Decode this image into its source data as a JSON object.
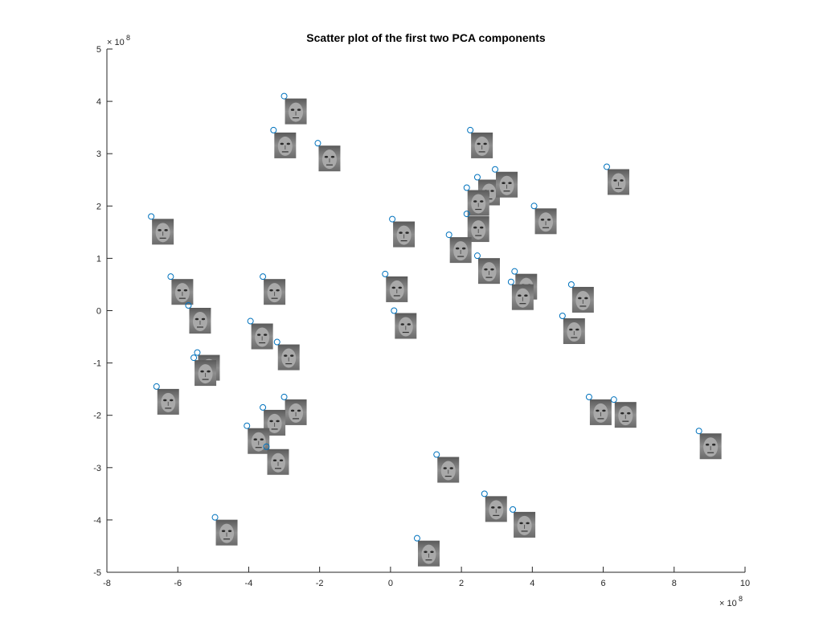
{
  "chart_data": {
    "type": "scatter",
    "title": "Scatter plot of the first two PCA components",
    "xlabel": "",
    "ylabel": "",
    "xlim": [
      -8,
      10
    ],
    "ylim": [
      -5,
      5
    ],
    "x_ticks": [
      -8,
      -6,
      -4,
      -2,
      0,
      2,
      4,
      6,
      8,
      10
    ],
    "y_ticks": [
      -5,
      -4,
      -3,
      -2,
      -1,
      0,
      1,
      2,
      3,
      4,
      5
    ],
    "x_tick_labels": [
      "-8",
      "-6",
      "-4",
      "-2",
      "0",
      "2",
      "4",
      "6",
      "8",
      "10"
    ],
    "y_tick_labels": [
      "-5",
      "-4",
      "-3",
      "-2",
      "-1",
      "0",
      "1",
      "2",
      "3",
      "4",
      "5"
    ],
    "x_exponent": {
      "base": "× 10",
      "power": "8"
    },
    "y_exponent": {
      "base": "× 10",
      "power": "8"
    },
    "marker": "circle-with-face-thumbnail",
    "marker_color": "#0072BD",
    "grid": false,
    "points": [
      {
        "x": -3.0,
        "y": 4.1
      },
      {
        "x": -3.3,
        "y": 3.45
      },
      {
        "x": -2.05,
        "y": 3.2
      },
      {
        "x": -6.75,
        "y": 1.8
      },
      {
        "x": -6.2,
        "y": 0.65
      },
      {
        "x": -3.6,
        "y": 0.65
      },
      {
        "x": -5.7,
        "y": 0.1
      },
      {
        "x": -3.95,
        "y": -0.2
      },
      {
        "x": -3.2,
        "y": -0.6
      },
      {
        "x": -5.45,
        "y": -0.8
      },
      {
        "x": -5.55,
        "y": -0.9
      },
      {
        "x": -6.6,
        "y": -1.45
      },
      {
        "x": -3.0,
        "y": -1.65
      },
      {
        "x": -3.6,
        "y": -1.85
      },
      {
        "x": -4.05,
        "y": -2.2
      },
      {
        "x": -3.5,
        "y": -2.6
      },
      {
        "x": -4.95,
        "y": -3.95
      },
      {
        "x": -0.15,
        "y": 0.7
      },
      {
        "x": 0.05,
        "y": 1.75
      },
      {
        "x": 0.1,
        "y": 0.0
      },
      {
        "x": 2.25,
        "y": 3.45
      },
      {
        "x": 2.45,
        "y": 2.55
      },
      {
        "x": 2.95,
        "y": 2.7
      },
      {
        "x": 2.15,
        "y": 2.35
      },
      {
        "x": 2.15,
        "y": 1.85
      },
      {
        "x": 1.65,
        "y": 1.45
      },
      {
        "x": 2.45,
        "y": 1.05
      },
      {
        "x": 4.05,
        "y": 2.0
      },
      {
        "x": 6.1,
        "y": 2.75
      },
      {
        "x": 3.5,
        "y": 0.75
      },
      {
        "x": 3.4,
        "y": 0.55
      },
      {
        "x": 5.1,
        "y": 0.5
      },
      {
        "x": 4.85,
        "y": -0.1
      },
      {
        "x": 5.6,
        "y": -1.65
      },
      {
        "x": 6.3,
        "y": -1.7
      },
      {
        "x": 8.7,
        "y": -2.3
      },
      {
        "x": 1.3,
        "y": -2.75
      },
      {
        "x": 2.65,
        "y": -3.5
      },
      {
        "x": 3.45,
        "y": -3.8
      },
      {
        "x": 0.75,
        "y": -4.35
      }
    ]
  }
}
